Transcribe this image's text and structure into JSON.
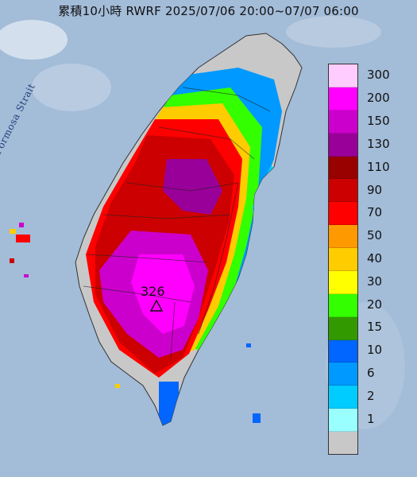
{
  "title": "累積10小時 RWRF 2025/07/06 20:00~07/07 06:00",
  "strait_label": "Formosa Strait",
  "max_marker": {
    "value": "326"
  },
  "legend": {
    "entries": [
      {
        "label": "300",
        "color": "#ffccff"
      },
      {
        "label": "200",
        "color": "#ff00ff"
      },
      {
        "label": "150",
        "color": "#cc00cc"
      },
      {
        "label": "130",
        "color": "#990099"
      },
      {
        "label": "110",
        "color": "#990000"
      },
      {
        "label": "90",
        "color": "#cc0000"
      },
      {
        "label": "70",
        "color": "#ff0000"
      },
      {
        "label": "50",
        "color": "#ff9900"
      },
      {
        "label": "40",
        "color": "#ffcc00"
      },
      {
        "label": "30",
        "color": "#ffff00"
      },
      {
        "label": "20",
        "color": "#33ff00"
      },
      {
        "label": "15",
        "color": "#339900"
      },
      {
        "label": "10",
        "color": "#0066ff"
      },
      {
        "label": "6",
        "color": "#0099ff"
      },
      {
        "label": "2",
        "color": "#00ccff"
      },
      {
        "label": "1",
        "color": "#99ffff"
      },
      {
        "label": "",
        "color": "#c8c8c8"
      }
    ]
  }
}
